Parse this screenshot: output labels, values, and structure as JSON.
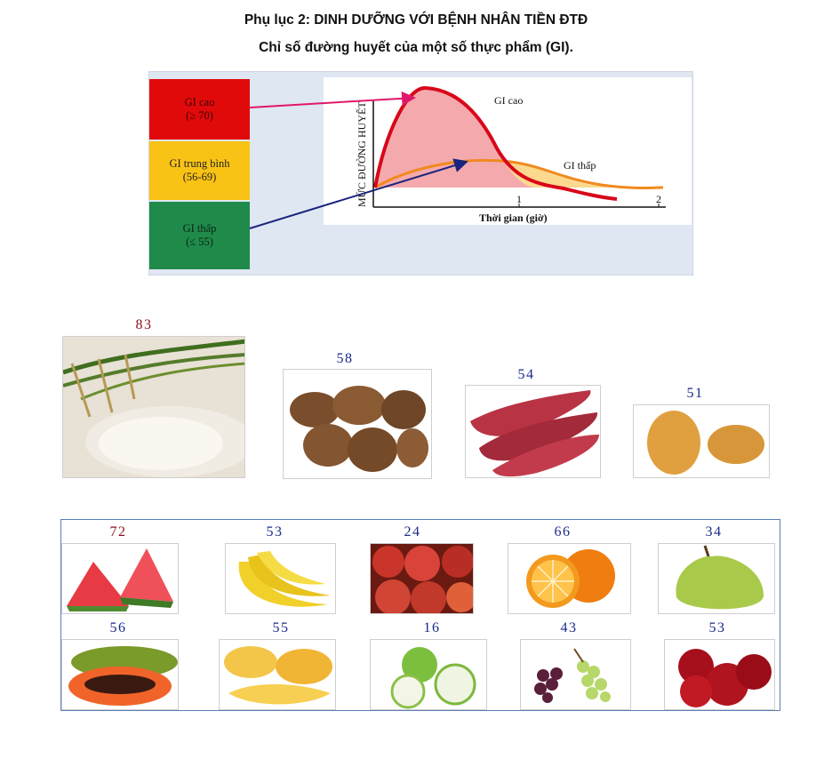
{
  "heading": {
    "line1": "Phụ lục 2: DINH DƯỠNG VỚI BỆNH NHÂN TIỀN ĐTĐ",
    "line2": "Chỉ số đường huyết của một số thực phẩm (GI)."
  },
  "gi_figure": {
    "bands": [
      {
        "label": "GI cao",
        "range": "(≥  70)",
        "color": "#e10a0a"
      },
      {
        "label": "GI trung bình",
        "range": "(56-69)",
        "color": "#f9c316"
      },
      {
        "label": "GI thấp",
        "range": "(≤ 55)",
        "color": "#1f8a4a"
      }
    ],
    "y_axis_label": "MỨC ĐƯỜNG HUYẾT",
    "x_axis_label": "Thời gian (giờ)",
    "x_ticks": [
      "1",
      "2"
    ],
    "curve_high_label": "GI cao",
    "curve_low_label": "GI thấp",
    "colors": {
      "high_curve": "#d9061a",
      "high_fill": "#f4a9ad",
      "low_curve": "#f08a1f",
      "low_fill": "#fcd98e",
      "arrow_high": "#e0186a",
      "arrow_low": "#1a237e"
    }
  },
  "staples": [
    {
      "name": "rice",
      "gi": "83"
    },
    {
      "name": "taro",
      "gi": "58"
    },
    {
      "name": "sweet-potato",
      "gi": "54"
    },
    {
      "name": "yam",
      "gi": "51"
    }
  ],
  "fruits_row1": [
    {
      "name": "watermelon",
      "gi": "72"
    },
    {
      "name": "banana",
      "gi": "53"
    },
    {
      "name": "red-fruit",
      "gi": "24"
    },
    {
      "name": "orange",
      "gi": "66"
    },
    {
      "name": "pear",
      "gi": "34"
    }
  ],
  "fruits_row2": [
    {
      "name": "papaya",
      "gi": "56"
    },
    {
      "name": "mango",
      "gi": "55"
    },
    {
      "name": "guava",
      "gi": "16"
    },
    {
      "name": "grapes",
      "gi": "43"
    },
    {
      "name": "apple",
      "gi": "53"
    }
  ]
}
